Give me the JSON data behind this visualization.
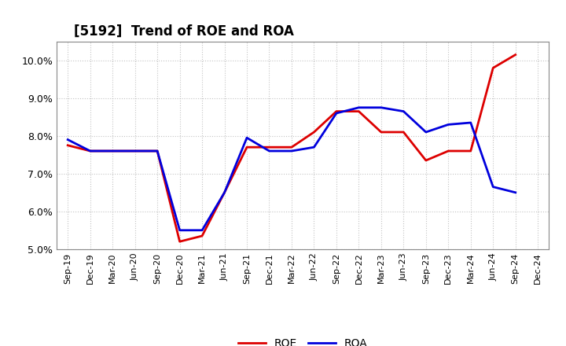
{
  "title": "[5192]  Trend of ROE and ROA",
  "x_labels": [
    "Sep-19",
    "Dec-19",
    "Mar-20",
    "Jun-20",
    "Sep-20",
    "Dec-20",
    "Mar-21",
    "Jun-21",
    "Sep-21",
    "Dec-21",
    "Mar-22",
    "Jun-22",
    "Sep-22",
    "Dec-22",
    "Mar-23",
    "Jun-23",
    "Sep-23",
    "Dec-23",
    "Mar-24",
    "Jun-24",
    "Sep-24",
    "Dec-24"
  ],
  "roe": [
    7.75,
    7.6,
    7.6,
    7.6,
    7.6,
    5.2,
    5.35,
    6.5,
    7.7,
    7.7,
    7.7,
    8.1,
    8.65,
    8.65,
    8.1,
    8.1,
    7.35,
    7.6,
    7.6,
    9.8,
    10.15,
    null
  ],
  "roa": [
    7.9,
    7.6,
    7.6,
    7.6,
    7.6,
    5.5,
    5.5,
    6.5,
    7.95,
    7.6,
    7.6,
    7.7,
    8.6,
    8.75,
    8.75,
    8.65,
    8.1,
    8.3,
    8.35,
    6.65,
    6.5,
    null
  ],
  "roe_color": "#dd0000",
  "roa_color": "#0000dd",
  "ylim": [
    5.0,
    10.5
  ],
  "yticks": [
    5.0,
    6.0,
    7.0,
    8.0,
    9.0,
    10.0
  ],
  "ytick_labels": [
    "5.0%",
    "6.0%",
    "7.0%",
    "8.0%",
    "9.0%",
    "10.0%"
  ],
  "background_color": "#ffffff",
  "grid_color": "#aaaaaa",
  "linewidth": 2.0
}
